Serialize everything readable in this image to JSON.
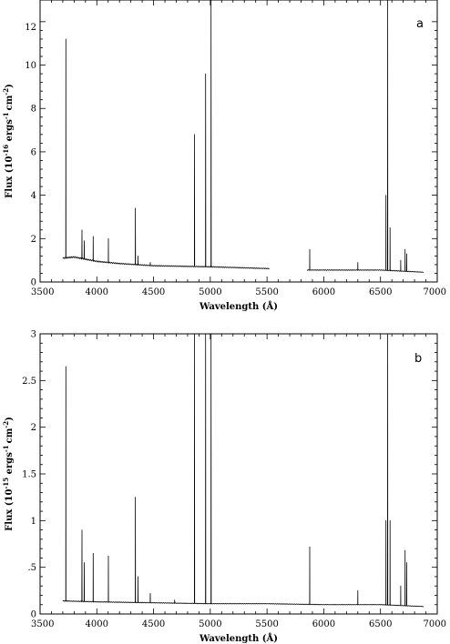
{
  "chart_data": [
    {
      "type": "line",
      "panel_label": "a",
      "xlabel": "Wavelength (Å)",
      "ylabel": "Flux (10",
      "ylabel_exp": "-16",
      "ylabel_unit": " ergs",
      "ylabel_unit_exp1": "-1",
      "ylabel_unit2": "cm",
      "ylabel_unit_exp2": "-2",
      "ylabel_close": ")",
      "xlim": [
        3500,
        7000
      ],
      "ylim": [
        0,
        13
      ],
      "xticks": [
        "3500",
        "4000",
        "4500",
        "5000",
        "5500",
        "6000",
        "6500",
        "7000"
      ],
      "yticks": [
        "0",
        "2",
        "4",
        "6",
        "8",
        "10",
        "12"
      ],
      "series": [
        {
          "gaps": [
            [
              5520,
              5850
            ],
            [
              6880,
              7000
            ]
          ],
          "continuum": [
            [
              3700,
              1.1
            ],
            [
              3800,
              1.15
            ],
            [
              3900,
              1.05
            ],
            [
              4000,
              0.95
            ],
            [
              4200,
              0.85
            ],
            [
              4500,
              0.75
            ],
            [
              5000,
              0.7
            ],
            [
              5500,
              0.62
            ],
            [
              5850,
              0.55
            ],
            [
              6300,
              0.55
            ],
            [
              6500,
              0.55
            ],
            [
              6880,
              0.45
            ]
          ],
          "lines": [
            [
              3727,
              11.2
            ],
            [
              3869,
              2.4
            ],
            [
              3889,
              1.9
            ],
            [
              3968,
              2.1
            ],
            [
              4102,
              2.0
            ],
            [
              4340,
              3.4
            ],
            [
              4363,
              1.2
            ],
            [
              4471,
              0.9
            ],
            [
              4861,
              6.8
            ],
            [
              4959,
              9.6
            ],
            [
              5007,
              13.0
            ],
            [
              5876,
              1.5
            ],
            [
              6300,
              0.9
            ],
            [
              6548,
              4.0
            ],
            [
              6563,
              13.0
            ],
            [
              6584,
              2.5
            ],
            [
              6678,
              1.0
            ],
            [
              6717,
              1.5
            ],
            [
              6731,
              1.3
            ]
          ]
        }
      ]
    },
    {
      "type": "line",
      "panel_label": "b",
      "xlabel": "Wavelength (Å)",
      "ylabel": "Flux (10",
      "ylabel_exp": "-15",
      "ylabel_unit": " ergs",
      "ylabel_unit_exp1": "-1",
      "ylabel_unit2": "cm",
      "ylabel_unit_exp2": "-2",
      "ylabel_close": ")",
      "xlim": [
        3500,
        7000
      ],
      "ylim": [
        0,
        3
      ],
      "xticks": [
        "3500",
        "4000",
        "4500",
        "5000",
        "5500",
        "6000",
        "6500",
        "7000"
      ],
      "yticks": [
        "0",
        ".5",
        "1",
        "1.5",
        "2",
        "2.5",
        "3"
      ],
      "series": [
        {
          "gaps": [
            [
              6880,
              7000
            ]
          ],
          "continuum": [
            [
              3700,
              0.14
            ],
            [
              4000,
              0.13
            ],
            [
              4500,
              0.12
            ],
            [
              5000,
              0.11
            ],
            [
              5500,
              0.11
            ],
            [
              6000,
              0.1
            ],
            [
              6500,
              0.1
            ],
            [
              6880,
              0.08
            ]
          ],
          "lines": [
            [
              3727,
              2.65
            ],
            [
              3869,
              0.9
            ],
            [
              3889,
              0.55
            ],
            [
              3968,
              0.65
            ],
            [
              4102,
              0.62
            ],
            [
              4340,
              1.25
            ],
            [
              4363,
              0.4
            ],
            [
              4471,
              0.22
            ],
            [
              4686,
              0.15
            ],
            [
              4861,
              3.0
            ],
            [
              4959,
              3.0
            ],
            [
              5007,
              3.0
            ],
            [
              5876,
              0.72
            ],
            [
              6300,
              0.25
            ],
            [
              6548,
              1.0
            ],
            [
              6563,
              3.0
            ],
            [
              6584,
              1.0
            ],
            [
              6678,
              0.3
            ],
            [
              6717,
              0.68
            ],
            [
              6731,
              0.55
            ]
          ]
        }
      ]
    }
  ]
}
